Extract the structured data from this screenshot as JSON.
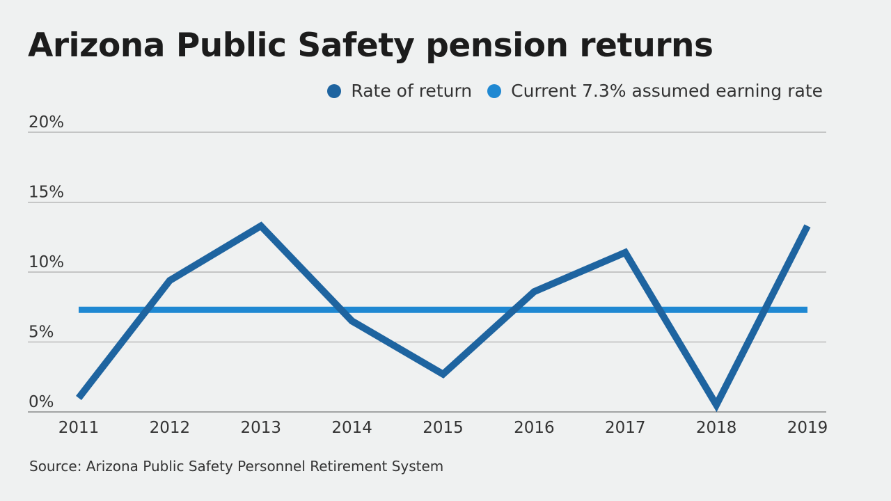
{
  "chart_data": {
    "type": "line",
    "title": "Arizona Public Safety pension returns",
    "x": [
      "2011",
      "2012",
      "2013",
      "2014",
      "2015",
      "2016",
      "2017",
      "2018",
      "2019"
    ],
    "series": [
      {
        "name": "Rate of return",
        "color": "#1e64a0",
        "values": [
          1.0,
          9.4,
          13.3,
          6.5,
          2.7,
          8.6,
          11.4,
          0.5,
          13.3
        ]
      },
      {
        "name": "Current 7.3% assumed earning rate",
        "color": "#1f88d2",
        "values": [
          7.3,
          7.3,
          7.3,
          7.3,
          7.3,
          7.3,
          7.3,
          7.3,
          7.3
        ]
      }
    ],
    "yticks": [
      0,
      5,
      10,
      15,
      20
    ],
    "ytick_labels": [
      "0%",
      "5%",
      "10%",
      "15%",
      "20%"
    ],
    "ylim": [
      0,
      20
    ],
    "grid": true,
    "legend_position": "top-right",
    "xlabel": "",
    "ylabel": ""
  },
  "source": "Source: Arizona Public Safety Personnel Retirement System"
}
